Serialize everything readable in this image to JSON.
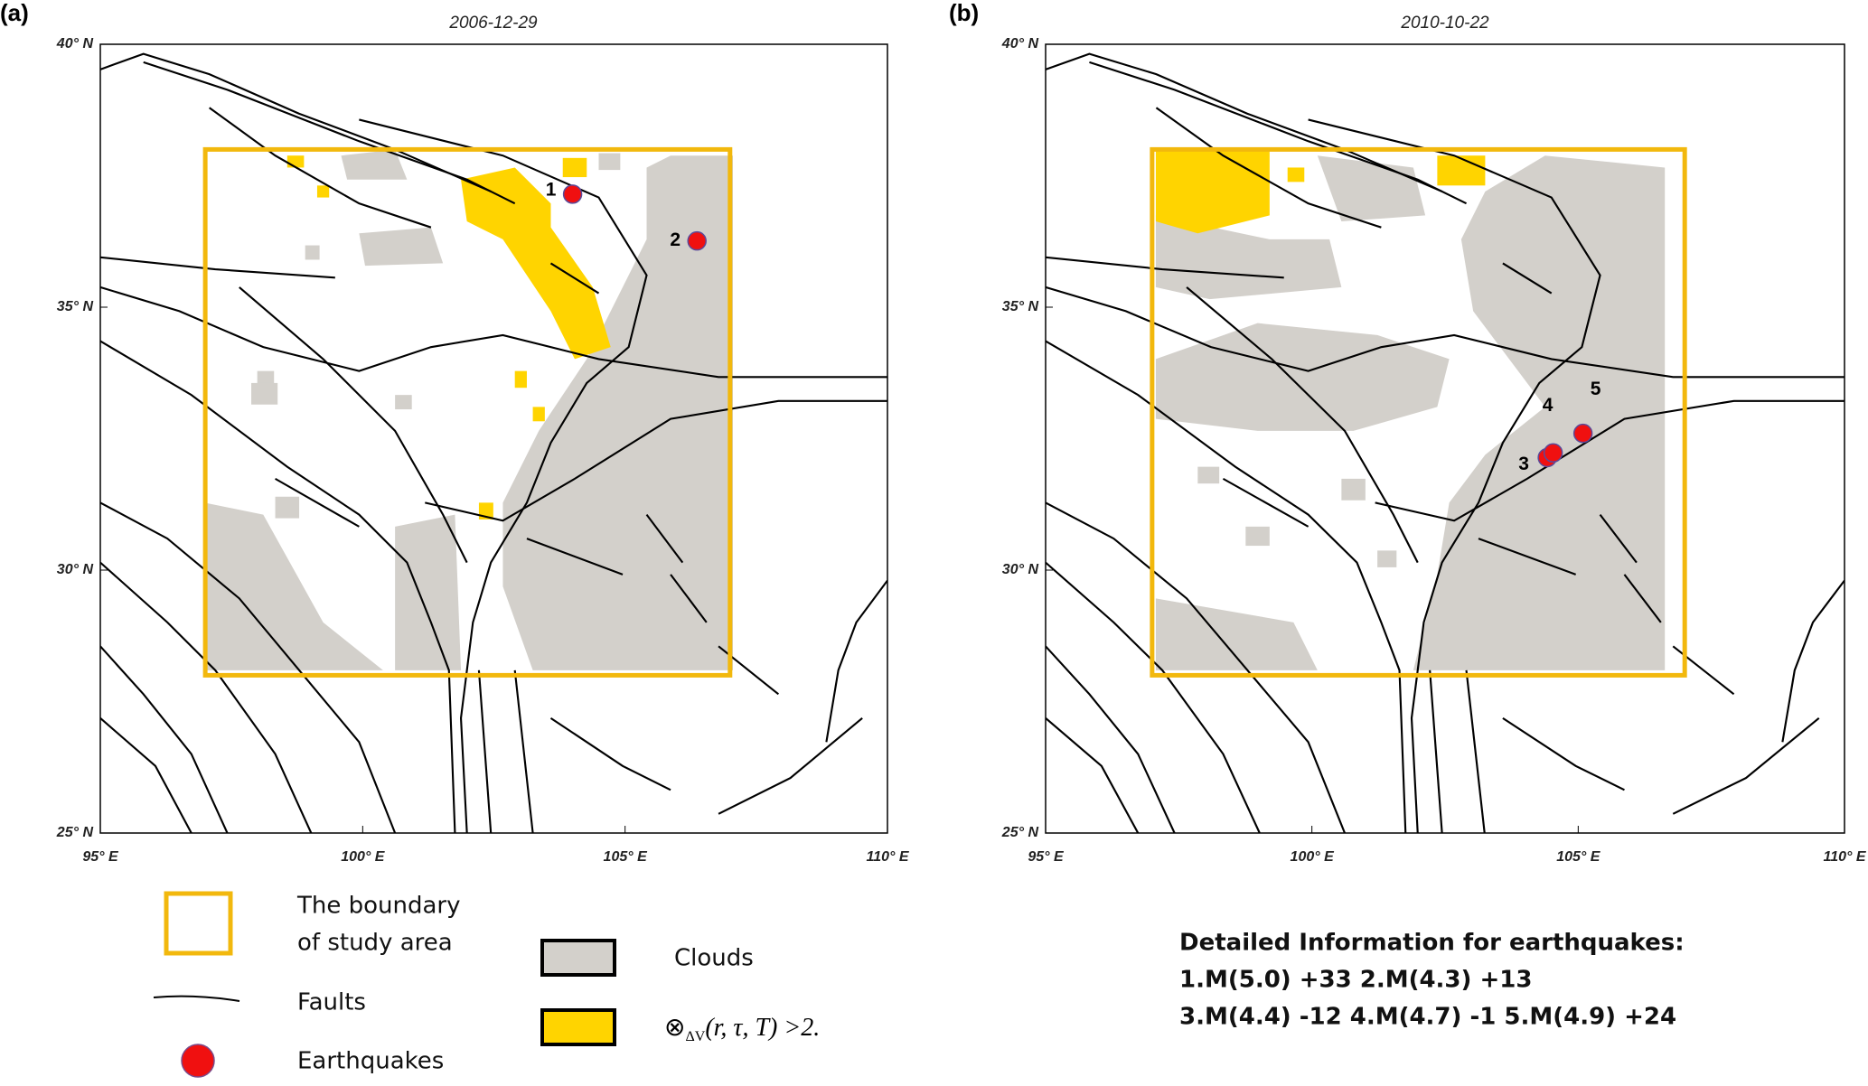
{
  "panels": [
    {
      "label": "(a)",
      "date": "2006-12-29",
      "earthquakes": [
        {
          "id": "1",
          "lon": 104.0,
          "lat": 37.15
        },
        {
          "id": "2",
          "lon": 106.37,
          "lat": 36.26
        }
      ]
    },
    {
      "label": "(b)",
      "date": "2010-10-22",
      "earthquakes": [
        {
          "id": "3",
          "lon": 104.42,
          "lat": 32.14
        },
        {
          "id": "4",
          "lon": 104.53,
          "lat": 32.23
        },
        {
          "id": "5",
          "lon": 105.09,
          "lat": 32.6
        }
      ]
    }
  ],
  "axes": {
    "xlim": [
      95,
      110
    ],
    "ylim": [
      25,
      40
    ],
    "xticks": [
      {
        "value": 95,
        "label": "95° E"
      },
      {
        "value": 100,
        "label": "100° E"
      },
      {
        "value": 105,
        "label": "105° E"
      },
      {
        "value": 110,
        "label": "110° E"
      }
    ],
    "yticks": [
      {
        "value": 25,
        "label": "25° N"
      },
      {
        "value": 30,
        "label": "30° N"
      },
      {
        "value": 35,
        "label": "35° N"
      },
      {
        "value": 40,
        "label": "40° N"
      }
    ]
  },
  "study_area": {
    "lon": [
      97,
      107
    ],
    "lat": [
      28,
      38
    ]
  },
  "legend": {
    "boundary": [
      "The boundary",
      "of study area"
    ],
    "faults": "Faults",
    "earthquakes": "Earthquakes",
    "clouds": "Clouds",
    "index": {
      "symbol": "⊗",
      "subscript": "ΔV",
      "rest": "(r, τ, T) >2."
    }
  },
  "info": {
    "title": "Detailed Information for earthquakes:",
    "lines": [
      "1.M(5.0) +33  2.M(4.3) +13",
      "3.M(4.4) -12  4.M(4.7) -1  5.M(4.9) +24"
    ]
  }
}
